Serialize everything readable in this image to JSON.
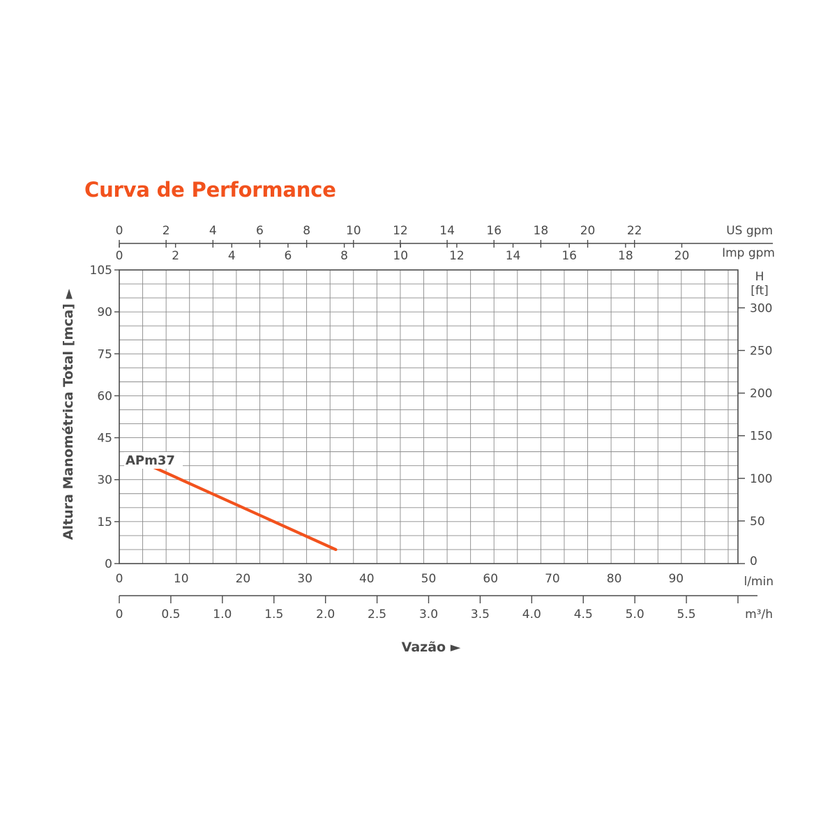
{
  "title": "Curva de Performance",
  "chart_data": {
    "type": "line",
    "title": "Curva de Performance",
    "xlabel": "Vazão ►",
    "ylabel": "Altura Manométrica Total [mca] ►",
    "x_unit": "l/min",
    "xlim": [
      0,
      100
    ],
    "ylim": [
      0,
      105
    ],
    "grid": true,
    "series": [
      {
        "name": "APm37",
        "color": "#f2521d",
        "x": [
          5,
          35
        ],
        "y": [
          35,
          5
        ]
      }
    ],
    "y_ticks": [
      0,
      15,
      30,
      45,
      60,
      75,
      90,
      105
    ],
    "x_ticks": [
      0,
      10,
      20,
      30,
      40,
      50,
      60,
      70,
      80,
      90
    ],
    "secondary_axes": {
      "us_gpm": {
        "unit": "US gpm",
        "ticks": [
          0,
          2,
          4,
          6,
          8,
          10,
          12,
          14,
          16,
          18,
          20,
          22
        ]
      },
      "imp_gpm": {
        "unit": "Imp gpm",
        "ticks": [
          0,
          2,
          4,
          6,
          8,
          10,
          12,
          14,
          16,
          18,
          20
        ]
      },
      "m3h": {
        "unit": "m³/h",
        "ticks": [
          "0",
          "0.5",
          "1.0",
          "1.5",
          "2.0",
          "2.5",
          "3.0",
          "3.5",
          "4.0",
          "4.5",
          "5.0",
          "5.5"
        ]
      },
      "feet": {
        "unit_line1": "H",
        "unit_line2": "[ft]",
        "ticks": [
          0,
          50,
          100,
          150,
          200,
          250,
          300
        ]
      }
    }
  }
}
